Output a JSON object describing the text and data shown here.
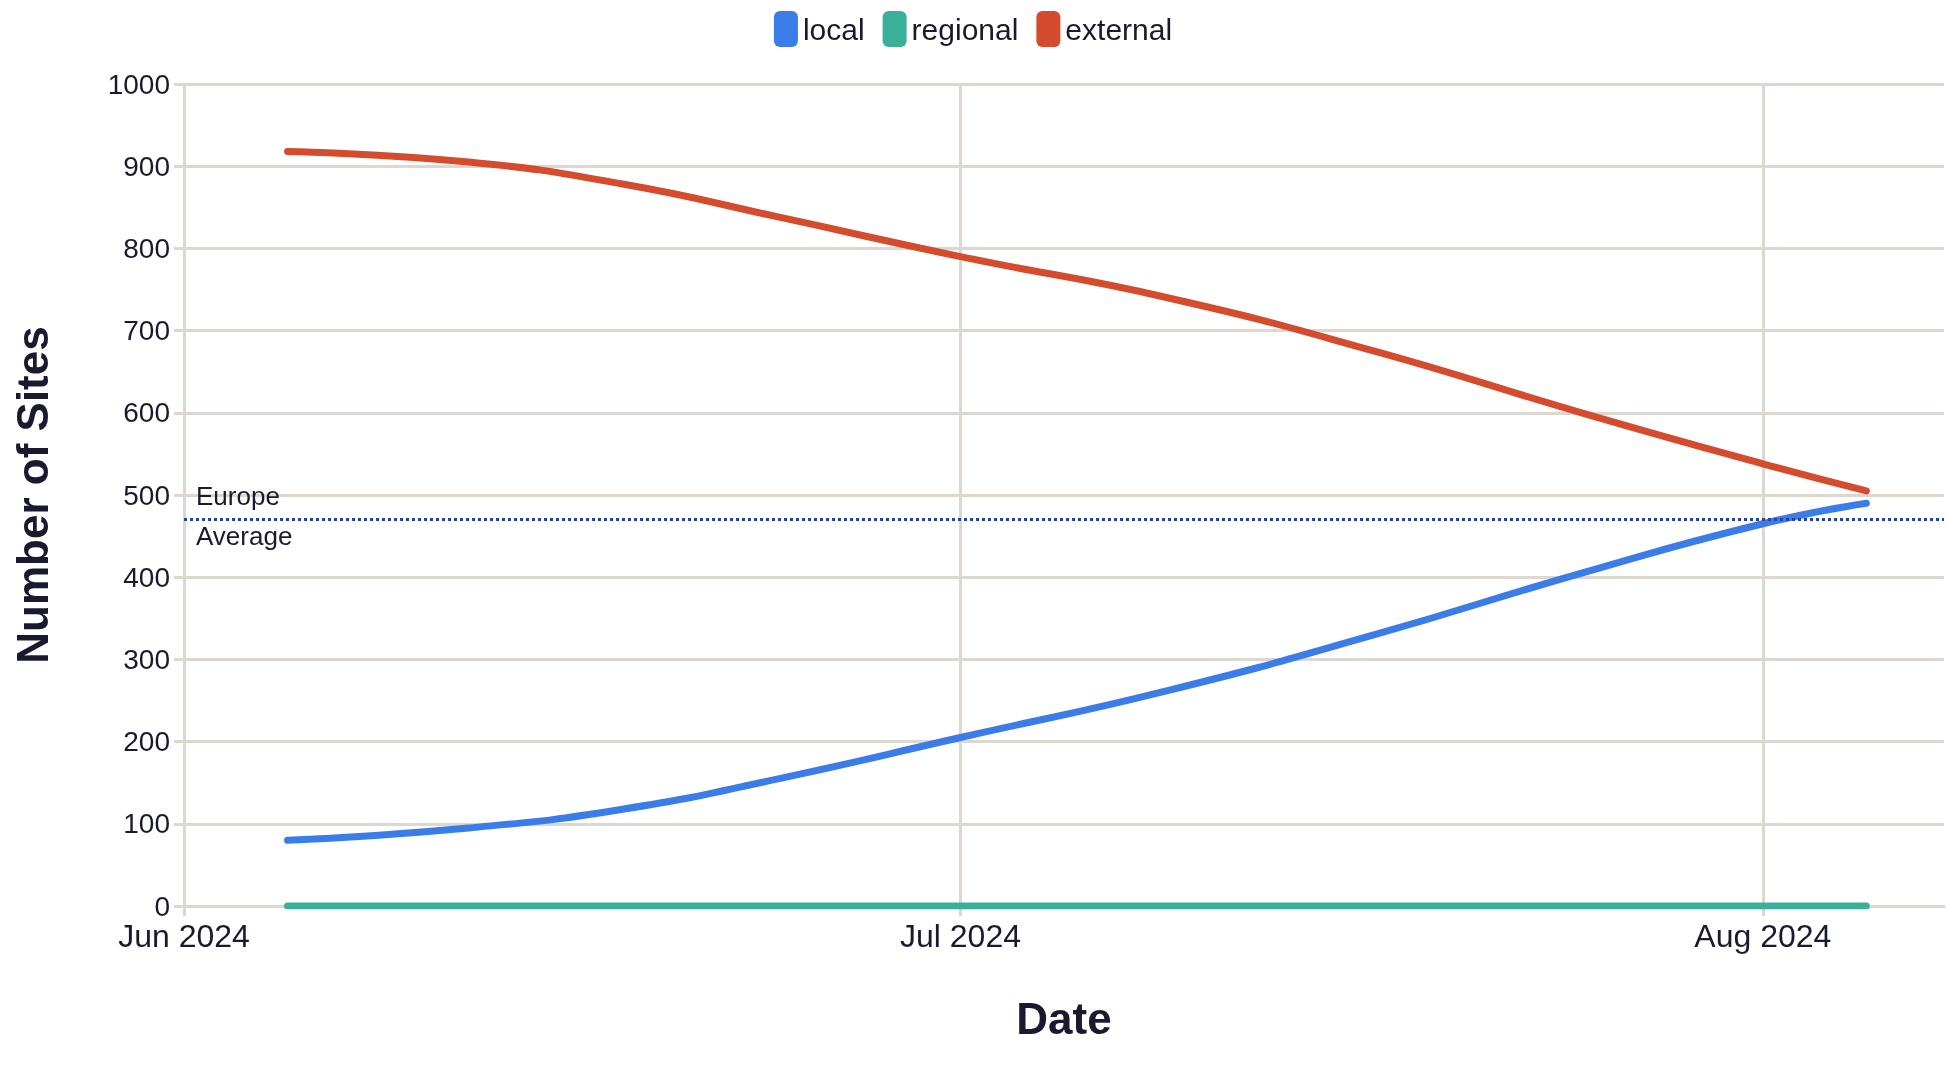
{
  "chart_data": {
    "type": "line",
    "xlabel": "Date",
    "ylabel": "Number of Sites",
    "x": [
      "2024-06-05",
      "2024-06-12",
      "2024-06-18",
      "2024-06-24",
      "2024-07-01",
      "2024-07-09",
      "2024-07-17",
      "2024-07-25",
      "2024-08-01",
      "2024-08-05"
    ],
    "series": [
      {
        "name": "local",
        "color": "#3b7de8",
        "values": [
          80,
          95,
          118,
          155,
          205,
          262,
          330,
          405,
          465,
          490
        ]
      },
      {
        "name": "regional",
        "color": "#3aaf9a",
        "values": [
          0,
          0,
          0,
          0,
          0,
          0,
          0,
          0,
          0,
          0
        ]
      },
      {
        "name": "external",
        "color": "#d44b2e",
        "values": [
          918,
          905,
          878,
          838,
          790,
          740,
          675,
          600,
          538,
          505
        ]
      }
    ],
    "xlim": [
      "2024-06-01",
      "2024-08-08"
    ],
    "xticks": [
      {
        "value": "2024-06-01",
        "label": "Jun 2024"
      },
      {
        "value": "2024-07-01",
        "label": "Jul 2024"
      },
      {
        "value": "2024-08-01",
        "label": "Aug 2024"
      }
    ],
    "ylim": [
      0,
      1000
    ],
    "yticks": [
      0,
      100,
      200,
      300,
      400,
      500,
      600,
      700,
      800,
      900,
      1000
    ],
    "ref_lines": [
      {
        "axis": "y",
        "value": 470,
        "label": "Europe\nAverage",
        "color": "#2342b0",
        "line_style": "dotted"
      }
    ],
    "grid": true,
    "legend": "top",
    "marker": "none",
    "line_style": "solid"
  }
}
